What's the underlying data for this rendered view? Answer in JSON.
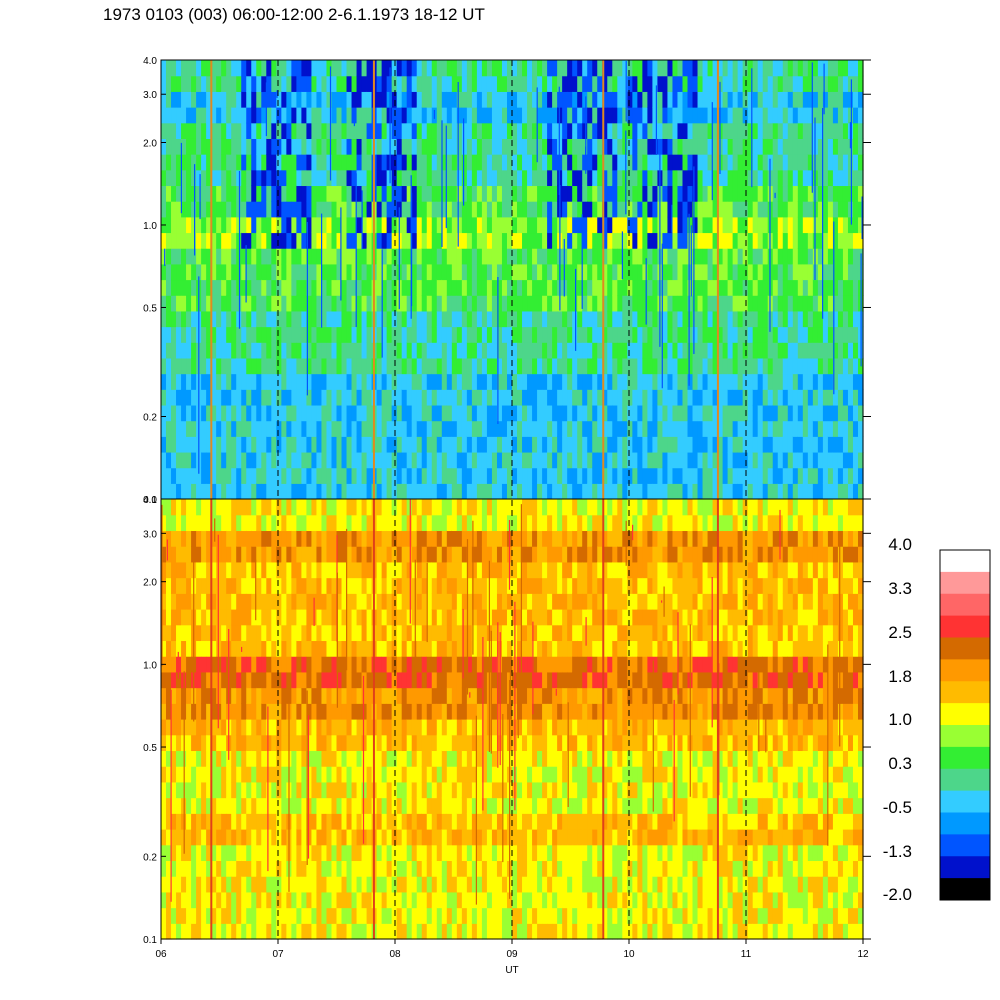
{
  "title": "1973 0103 (003) 06:00-12:00 2-6.1.1973  18-12 UT",
  "chart_data": {
    "type": "heatmap",
    "xlabel": "UT",
    "x_ticks": [
      "06",
      "07",
      "08",
      "09",
      "10",
      "11",
      "12"
    ],
    "x_range": [
      6,
      12
    ],
    "panels": [
      {
        "id": "upper",
        "y_scale": "log",
        "ylim": [
          0.1,
          4.0
        ],
        "y_ticks": [
          "0.1",
          "0.2",
          "0.5",
          "1.0",
          "2.0",
          "3.0",
          "4.0"
        ],
        "dominant_levels": "0.3 to -1.3",
        "notes": "mostly cyan/green levels with blue streaks; bursts of low values near 07, 08, 09:30 and 10:30 above 1.0"
      },
      {
        "id": "lower",
        "y_scale": "log",
        "ylim": [
          0.1,
          4.0
        ],
        "y_ticks": [
          "0.1",
          "0.2",
          "0.5",
          "1.0",
          "2.0",
          "3.0",
          "4.0"
        ],
        "dominant_levels": "1.0 to 2.5",
        "notes": "yellow/orange levels; persistent dark orange band near 0.75-1.0"
      }
    ],
    "colorbar": {
      "labels": [
        "4.0",
        "3.3",
        "2.5",
        "1.8",
        "1.0",
        "0.3",
        "-0.5",
        "-1.3",
        "-2.0"
      ],
      "colors": [
        "#ffffff",
        "#ff9999",
        "#ff6666",
        "#ff3333",
        "#d46a00",
        "#ff9900",
        "#ffbb00",
        "#ffff00",
        "#99ff33",
        "#33ee33",
        "#4dd68a",
        "#33ccff",
        "#0099ff",
        "#0055ff",
        "#0011cc",
        "#000000"
      ]
    },
    "vertical_markers_at": [
      "07",
      "08",
      "09",
      "10",
      "11"
    ],
    "grid": "dashed vertical lines at hours"
  }
}
